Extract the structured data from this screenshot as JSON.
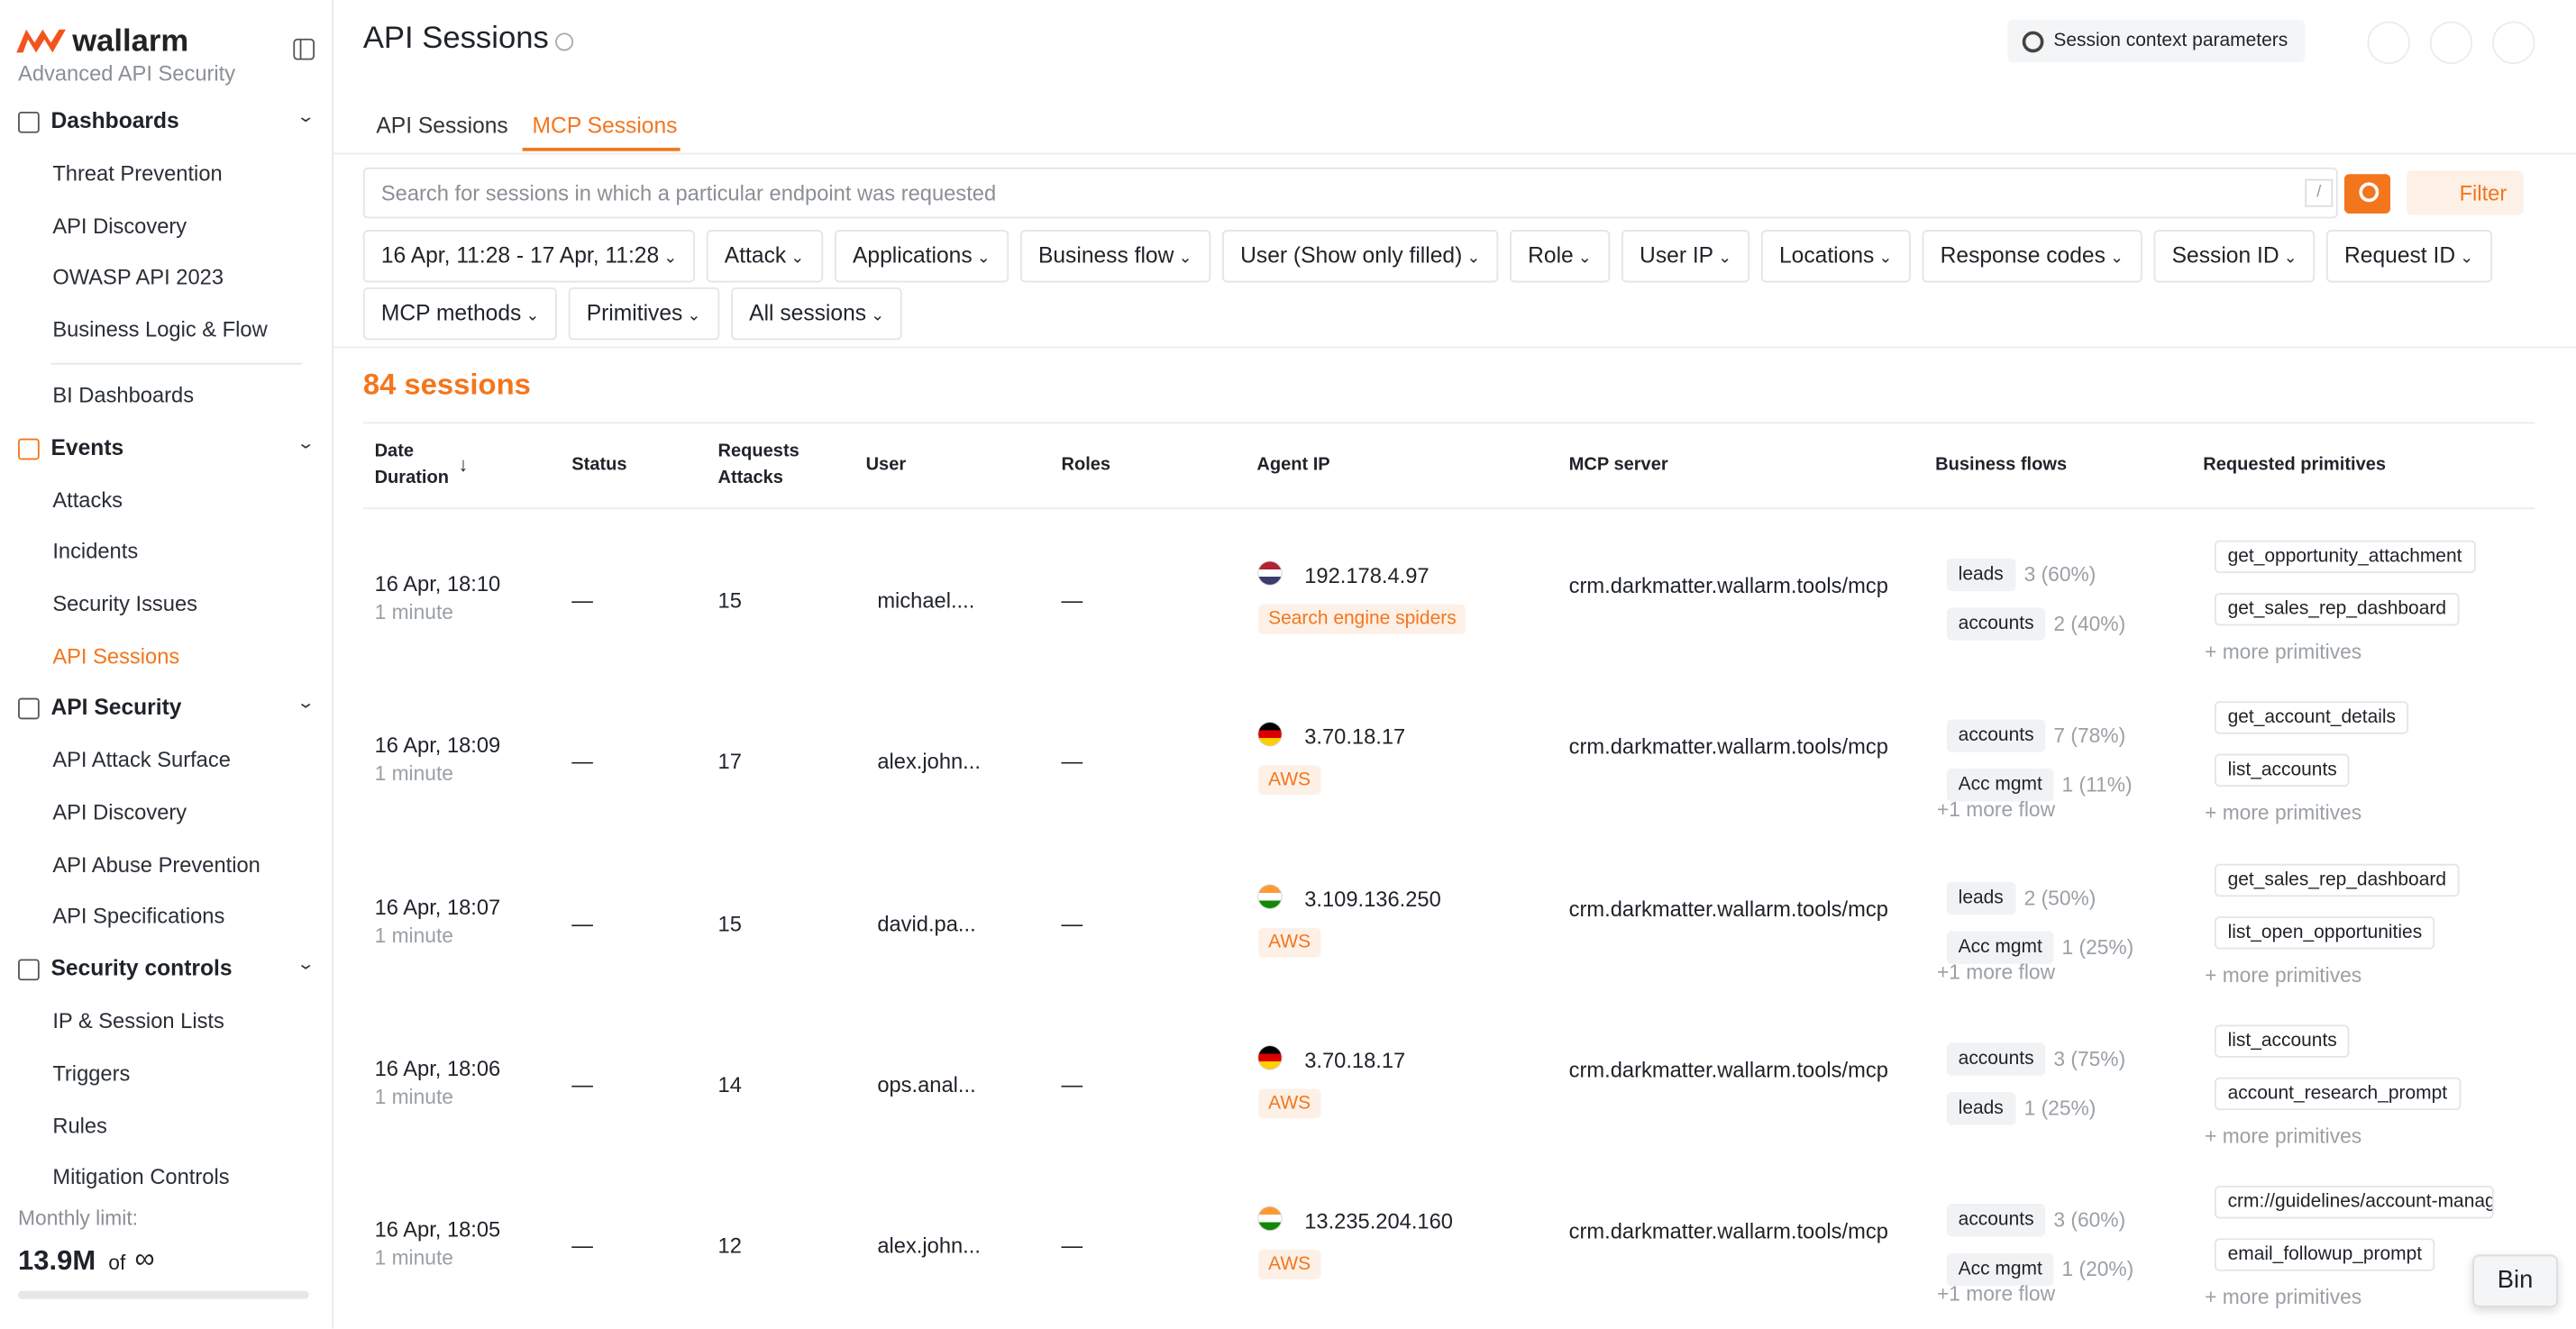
{
  "sidebar": {
    "brand": "wallarm",
    "subtitle": "Advanced API Security",
    "sections": [
      {
        "title": "Dashboards",
        "items": [
          {
            "label": "Threat Prevention"
          },
          {
            "label": "API Discovery"
          },
          {
            "label": "OWASP API 2023"
          },
          {
            "label": "Business Logic & Flow"
          },
          {
            "label": "BI Dashboards"
          }
        ]
      },
      {
        "title": "Events",
        "items": [
          {
            "label": "Attacks"
          },
          {
            "label": "Incidents"
          },
          {
            "label": "Security Issues"
          },
          {
            "label": "API Sessions",
            "active": true
          }
        ]
      },
      {
        "title": "API Security",
        "items": [
          {
            "label": "API Attack Surface"
          },
          {
            "label": "API Discovery"
          },
          {
            "label": "API Abuse Prevention"
          },
          {
            "label": "API Specifications"
          }
        ]
      },
      {
        "title": "Security controls",
        "items": [
          {
            "label": "IP & Session Lists"
          },
          {
            "label": "Triggers"
          },
          {
            "label": "Rules"
          },
          {
            "label": "Mitigation Controls"
          }
        ]
      }
    ],
    "limit_label": "Monthly limit:",
    "limit_value": "13.9M",
    "limit_of": "of",
    "limit_max": "∞"
  },
  "header": {
    "title": "API Sessions",
    "context_button": "Session context parameters"
  },
  "tabs": {
    "items": [
      "API Sessions",
      "MCP Sessions"
    ],
    "active": 1
  },
  "search": {
    "placeholder": "Search for sessions in which a particular endpoint was requested",
    "shortcut": "/",
    "filter": "Filter"
  },
  "filters": [
    "16 Apr, 11:28 - 17 Apr, 11:28",
    "Attack",
    "Applications",
    "Business flow",
    "User (Show only filled)",
    "Role",
    "User IP",
    "Locations",
    "Response codes",
    "Session ID",
    "Request ID",
    "MCP methods",
    "Primitives",
    "All sessions"
  ],
  "count": "84 sessions",
  "table": {
    "columns": [
      [
        "Date",
        "Duration"
      ],
      [
        "Status"
      ],
      [
        "Requests",
        "Attacks"
      ],
      [
        "User"
      ],
      [
        "Roles"
      ],
      [
        "Agent IP"
      ],
      [
        "MCP server"
      ],
      [
        "Business flows"
      ],
      [
        "Requested primitives"
      ]
    ],
    "rows": [
      {
        "date": "16 Apr, 18:10",
        "duration": "1 minute",
        "status": "—",
        "requests": "15",
        "user": "michael....",
        "roles": "—",
        "flag": [
          "#b22234",
          "#ffffff",
          "#3c3b6e"
        ],
        "ip": "192.178.4.97",
        "ip_tag": "Search engine spiders",
        "server": "crm.darkmatter.wallarm.tools/mcp",
        "flows": [
          {
            "name": "leads",
            "stat": "3 (60%)"
          },
          {
            "name": "accounts",
            "stat": "2 (40%)"
          }
        ],
        "primitives": [
          "get_opportunity_attachment",
          "get_sales_rep_dashboard"
        ],
        "more_primitives": "+ more primitives"
      },
      {
        "date": "16 Apr, 18:09",
        "duration": "1 minute",
        "status": "—",
        "requests": "17",
        "user": "alex.john...",
        "roles": "—",
        "flag": [
          "#000000",
          "#dd0000",
          "#ffce00"
        ],
        "ip": "3.70.18.17",
        "ip_tag": "AWS",
        "server": "crm.darkmatter.wallarm.tools/mcp",
        "flows": [
          {
            "name": "accounts",
            "stat": "7 (78%)"
          },
          {
            "name": "Acc mgmt",
            "stat": "1 (11%)"
          }
        ],
        "more_flows": "+1 more flow",
        "primitives": [
          "get_account_details",
          "list_accounts"
        ],
        "more_primitives": "+ more primitives"
      },
      {
        "date": "16 Apr, 18:07",
        "duration": "1 minute",
        "status": "—",
        "requests": "15",
        "user": "david.pa...",
        "roles": "—",
        "flag": [
          "#ff9933",
          "#ffffff",
          "#138808"
        ],
        "ip": "3.109.136.250",
        "ip_tag": "AWS",
        "server": "crm.darkmatter.wallarm.tools/mcp",
        "flows": [
          {
            "name": "leads",
            "stat": "2 (50%)"
          },
          {
            "name": "Acc mgmt",
            "stat": "1 (25%)"
          }
        ],
        "more_flows": "+1 more flow",
        "primitives": [
          "get_sales_rep_dashboard",
          "list_open_opportunities"
        ],
        "more_primitives": "+ more primitives"
      },
      {
        "date": "16 Apr, 18:06",
        "duration": "1 minute",
        "status": "—",
        "requests": "14",
        "user": "ops.anal...",
        "roles": "—",
        "flag": [
          "#000000",
          "#dd0000",
          "#ffce00"
        ],
        "ip": "3.70.18.17",
        "ip_tag": "AWS",
        "server": "crm.darkmatter.wallarm.tools/mcp",
        "flows": [
          {
            "name": "accounts",
            "stat": "3 (75%)"
          },
          {
            "name": "leads",
            "stat": "1 (25%)"
          }
        ],
        "primitives": [
          "list_accounts",
          "account_research_prompt"
        ],
        "more_primitives": "+ more primitives"
      },
      {
        "date": "16 Apr, 18:05",
        "duration": "1 minute",
        "status": "—",
        "requests": "12",
        "user": "alex.john...",
        "roles": "—",
        "flag": [
          "#ff9933",
          "#ffffff",
          "#138808"
        ],
        "ip": "13.235.204.160",
        "ip_tag": "AWS",
        "server": "crm.darkmatter.wallarm.tools/mcp",
        "flows": [
          {
            "name": "accounts",
            "stat": "3 (60%)"
          },
          {
            "name": "Acc mgmt",
            "stat": "1 (20%)"
          }
        ],
        "more_flows": "+1 more flow",
        "primitives": [
          "crm://guidelines/account-manag",
          "email_followup_prompt"
        ],
        "more_primitives": "+ more primitives"
      }
    ]
  },
  "bin": "Bin"
}
